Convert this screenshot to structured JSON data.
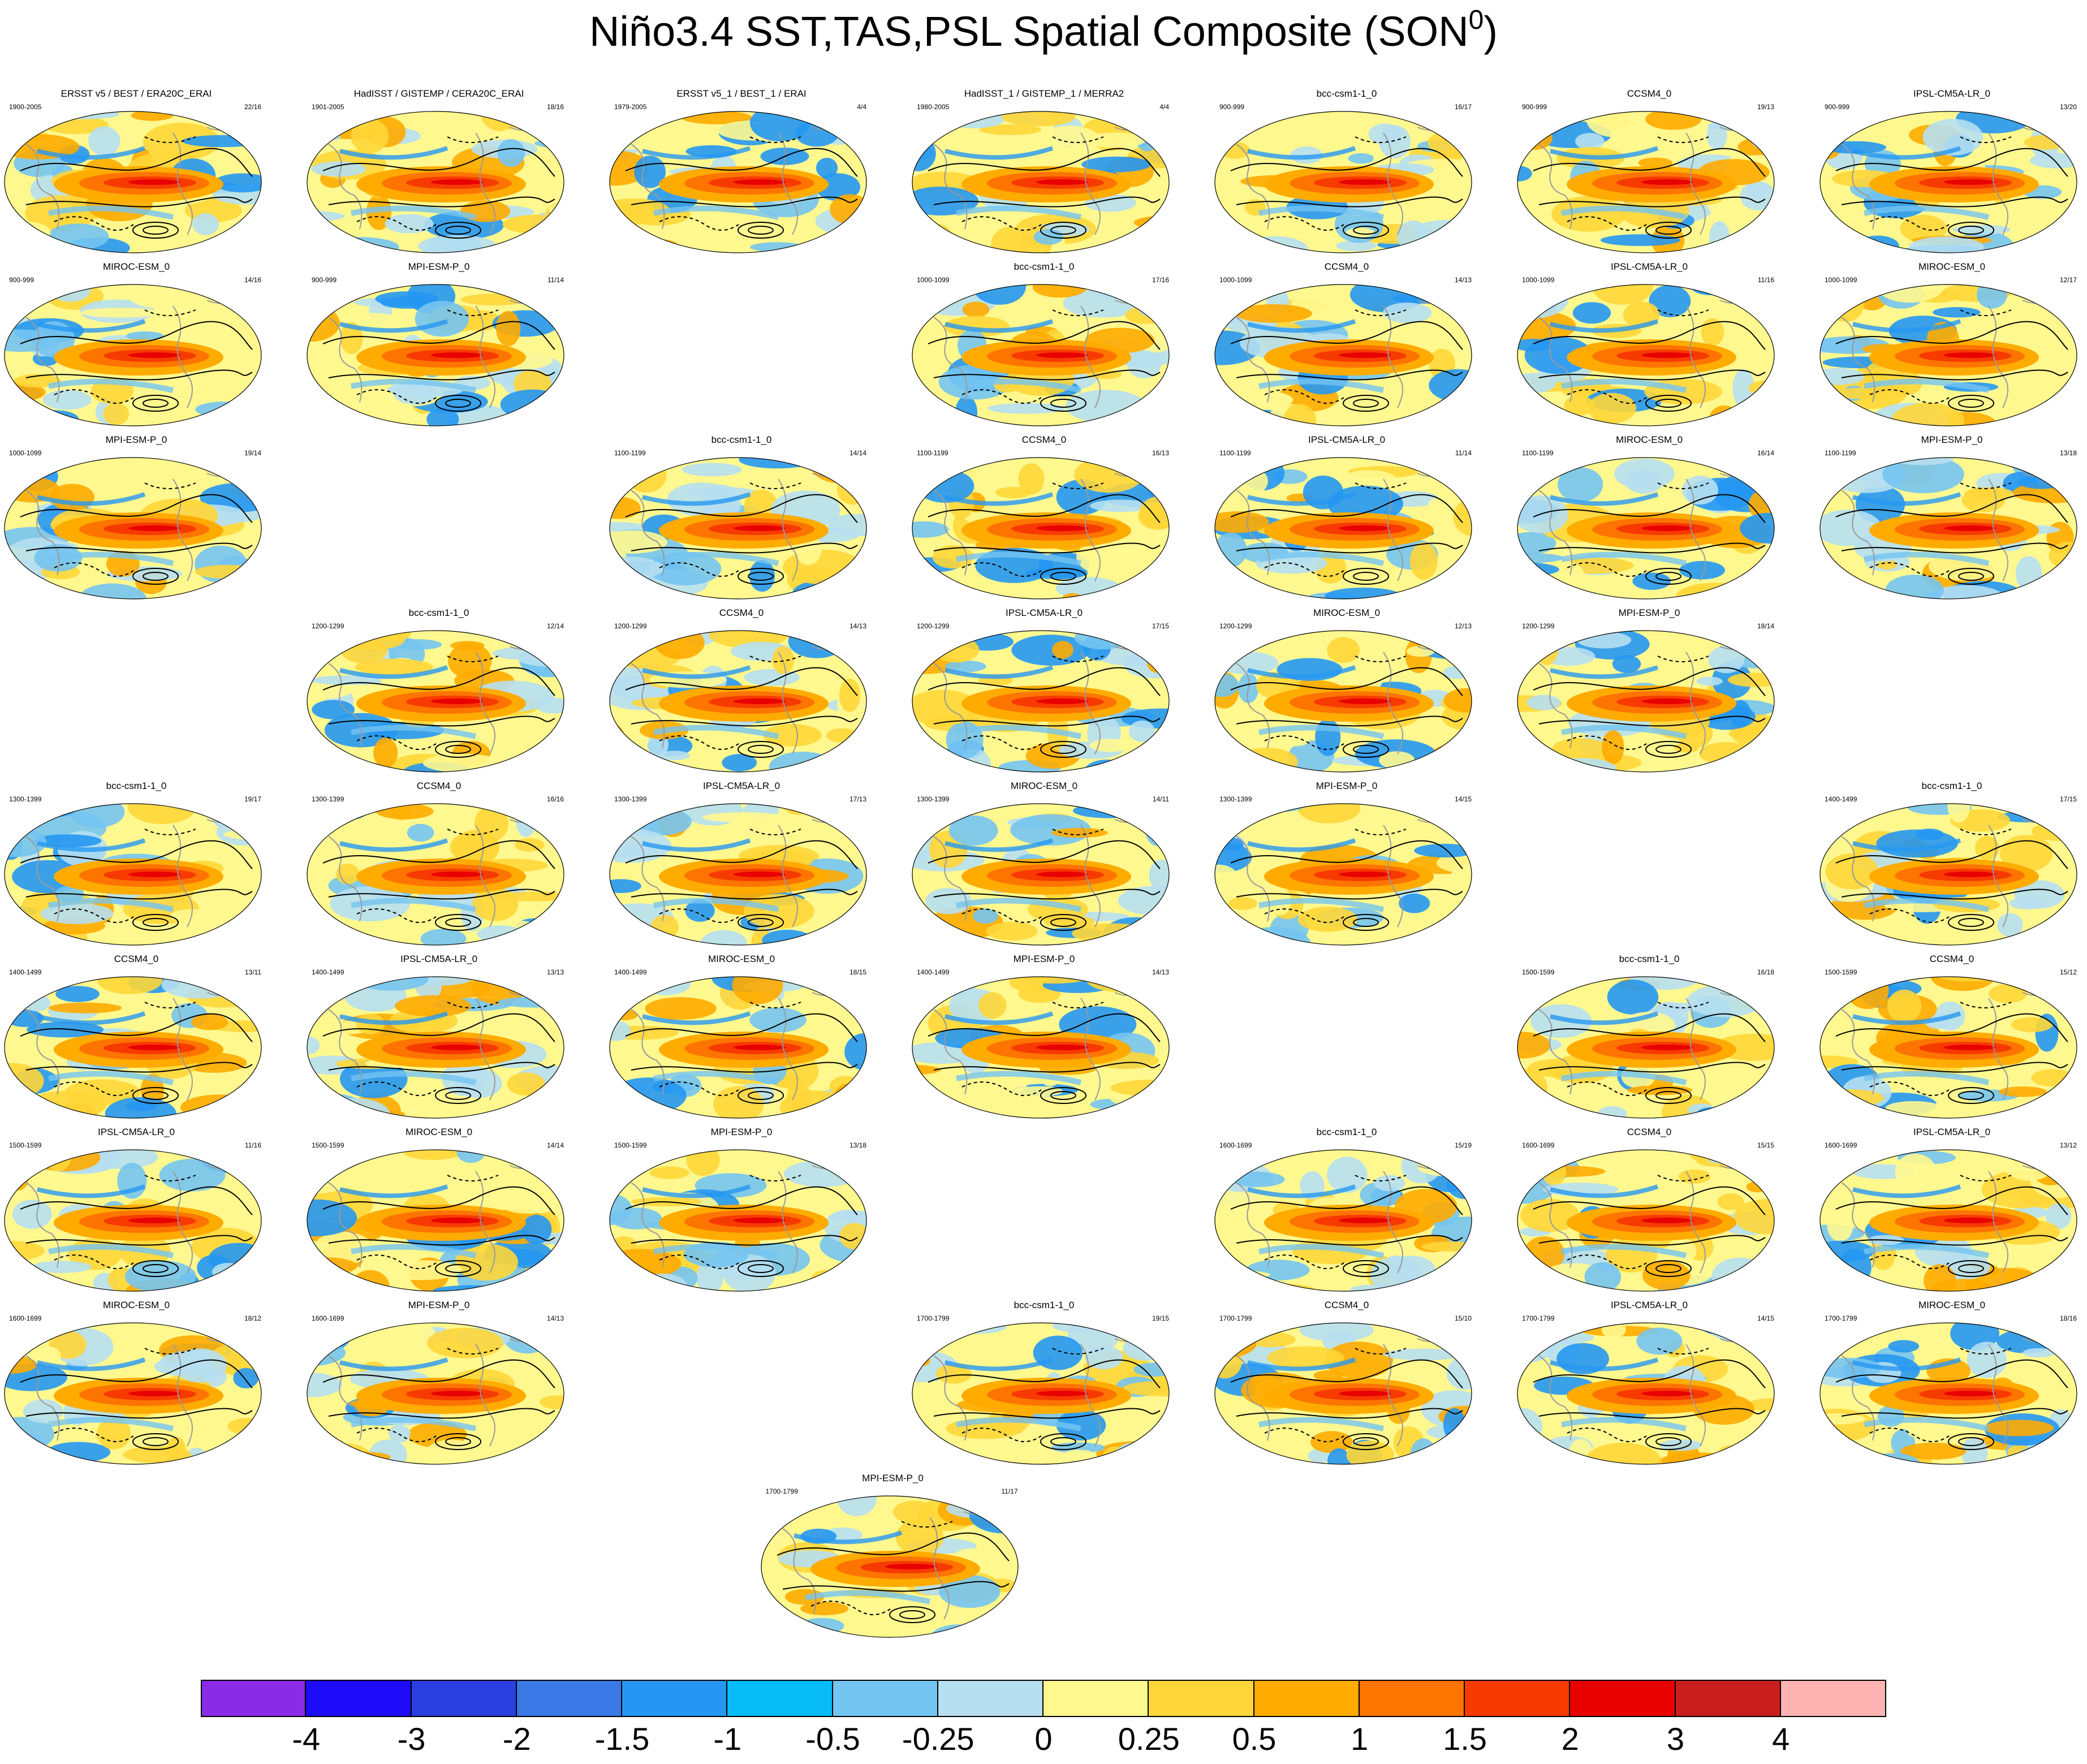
{
  "title": {
    "main": "Niño3.4 SST,TAS,PSL Spatial Composite (SON",
    "sup": "0",
    "end": ")"
  },
  "colorbar": {
    "colors": [
      "#8a2be8",
      "#1e0bf7",
      "#2a3fe0",
      "#3a78e6",
      "#2597f2",
      "#08bdf7",
      "#74c4f1",
      "#b6dff1",
      "#fff88f",
      "#ffd638",
      "#ffab00",
      "#fd7400",
      "#f73a00",
      "#e80000",
      "#c81e1e",
      "#ffb3b3"
    ],
    "ticks": [
      "-4",
      "-3",
      "-2",
      "-1.5",
      "-1",
      "-0.5",
      "-0.25",
      "0",
      "0.25",
      "0.5",
      "1",
      "1.5",
      "2",
      "3",
      "4"
    ]
  },
  "panels": [
    {
      "row": 0,
      "col": 0,
      "title": "ERSST v5 / BEST / ERA20C_ERAI",
      "years": "1900-2005",
      "count": "22/16"
    },
    {
      "row": 0,
      "col": 1,
      "title": "HadISST / GISTEMP / CERA20C_ERAI",
      "years": "1901-2005",
      "count": "18/16"
    },
    {
      "row": 0,
      "col": 2,
      "title": "ERSST v5_1 / BEST_1 / ERAI",
      "years": "1979-2005",
      "count": "4/4"
    },
    {
      "row": 0,
      "col": 3,
      "title": "HadISST_1 / GISTEMP_1 / MERRA2",
      "years": "1980-2005",
      "count": "4/4"
    },
    {
      "row": 0,
      "col": 4,
      "title": "bcc-csm1-1_0",
      "years": "900-999",
      "count": "16/17"
    },
    {
      "row": 0,
      "col": 5,
      "title": "CCSM4_0",
      "years": "900-999",
      "count": "19/13"
    },
    {
      "row": 0,
      "col": 6,
      "title": "IPSL-CM5A-LR_0",
      "years": "900-999",
      "count": "13/20"
    },
    {
      "row": 1,
      "col": 0,
      "title": "MIROC-ESM_0",
      "years": "900-999",
      "count": "14/16"
    },
    {
      "row": 1,
      "col": 1,
      "title": "MPI-ESM-P_0",
      "years": "900-999",
      "count": "11/14"
    },
    {
      "row": 1,
      "col": 3,
      "title": "bcc-csm1-1_0",
      "years": "1000-1099",
      "count": "17/16"
    },
    {
      "row": 1,
      "col": 4,
      "title": "CCSM4_0",
      "years": "1000-1099",
      "count": "14/13"
    },
    {
      "row": 1,
      "col": 5,
      "title": "IPSL-CM5A-LR_0",
      "years": "1000-1099",
      "count": "11/16"
    },
    {
      "row": 1,
      "col": 6,
      "title": "MIROC-ESM_0",
      "years": "1000-1099",
      "count": "12/17"
    },
    {
      "row": 2,
      "col": 0,
      "title": "MPI-ESM-P_0",
      "years": "1000-1099",
      "count": "19/14"
    },
    {
      "row": 2,
      "col": 2,
      "title": "bcc-csm1-1_0",
      "years": "1100-1199",
      "count": "14/14"
    },
    {
      "row": 2,
      "col": 3,
      "title": "CCSM4_0",
      "years": "1100-1199",
      "count": "16/13"
    },
    {
      "row": 2,
      "col": 4,
      "title": "IPSL-CM5A-LR_0",
      "years": "1100-1199",
      "count": "11/14"
    },
    {
      "row": 2,
      "col": 5,
      "title": "MIROC-ESM_0",
      "years": "1100-1199",
      "count": "16/14"
    },
    {
      "row": 2,
      "col": 6,
      "title": "MPI-ESM-P_0",
      "years": "1100-1199",
      "count": "13/18"
    },
    {
      "row": 3,
      "col": 1,
      "title": "bcc-csm1-1_0",
      "years": "1200-1299",
      "count": "12/14"
    },
    {
      "row": 3,
      "col": 2,
      "title": "CCSM4_0",
      "years": "1200-1299",
      "count": "14/13"
    },
    {
      "row": 3,
      "col": 3,
      "title": "IPSL-CM5A-LR_0",
      "years": "1200-1299",
      "count": "17/15"
    },
    {
      "row": 3,
      "col": 4,
      "title": "MIROC-ESM_0",
      "years": "1200-1299",
      "count": "12/13"
    },
    {
      "row": 3,
      "col": 5,
      "title": "MPI-ESM-P_0",
      "years": "1200-1299",
      "count": "18/14"
    },
    {
      "row": 4,
      "col": 0,
      "title": "bcc-csm1-1_0",
      "years": "1300-1399",
      "count": "19/17"
    },
    {
      "row": 4,
      "col": 1,
      "title": "CCSM4_0",
      "years": "1300-1399",
      "count": "16/16"
    },
    {
      "row": 4,
      "col": 2,
      "title": "IPSL-CM5A-LR_0",
      "years": "1300-1399",
      "count": "17/13"
    },
    {
      "row": 4,
      "col": 3,
      "title": "MIROC-ESM_0",
      "years": "1300-1399",
      "count": "14/11"
    },
    {
      "row": 4,
      "col": 4,
      "title": "MPI-ESM-P_0",
      "years": "1300-1399",
      "count": "14/15"
    },
    {
      "row": 4,
      "col": 6,
      "title": "bcc-csm1-1_0",
      "years": "1400-1499",
      "count": "17/15"
    },
    {
      "row": 5,
      "col": 0,
      "title": "CCSM4_0",
      "years": "1400-1499",
      "count": "13/11"
    },
    {
      "row": 5,
      "col": 1,
      "title": "IPSL-CM5A-LR_0",
      "years": "1400-1499",
      "count": "13/13"
    },
    {
      "row": 5,
      "col": 2,
      "title": "MIROC-ESM_0",
      "years": "1400-1499",
      "count": "18/15"
    },
    {
      "row": 5,
      "col": 3,
      "title": "MPI-ESM-P_0",
      "years": "1400-1499",
      "count": "14/13"
    },
    {
      "row": 5,
      "col": 5,
      "title": "bcc-csm1-1_0",
      "years": "1500-1599",
      "count": "16/18"
    },
    {
      "row": 5,
      "col": 6,
      "title": "CCSM4_0",
      "years": "1500-1599",
      "count": "15/12"
    },
    {
      "row": 6,
      "col": 0,
      "title": "IPSL-CM5A-LR_0",
      "years": "1500-1599",
      "count": "11/16"
    },
    {
      "row": 6,
      "col": 1,
      "title": "MIROC-ESM_0",
      "years": "1500-1599",
      "count": "14/14"
    },
    {
      "row": 6,
      "col": 2,
      "title": "MPI-ESM-P_0",
      "years": "1500-1599",
      "count": "13/18"
    },
    {
      "row": 6,
      "col": 4,
      "title": "bcc-csm1-1_0",
      "years": "1600-1699",
      "count": "15/19"
    },
    {
      "row": 6,
      "col": 5,
      "title": "CCSM4_0",
      "years": "1600-1699",
      "count": "15/15"
    },
    {
      "row": 6,
      "col": 6,
      "title": "IPSL-CM5A-LR_0",
      "years": "1600-1699",
      "count": "13/12"
    },
    {
      "row": 7,
      "col": 0,
      "title": "MIROC-ESM_0",
      "years": "1600-1699",
      "count": "18/12"
    },
    {
      "row": 7,
      "col": 1,
      "title": "MPI-ESM-P_0",
      "years": "1600-1699",
      "count": "14/13"
    },
    {
      "row": 7,
      "col": 3,
      "title": "bcc-csm1-1_0",
      "years": "1700-1799",
      "count": "19/15"
    },
    {
      "row": 7,
      "col": 4,
      "title": "CCSM4_0",
      "years": "1700-1799",
      "count": "15/10"
    },
    {
      "row": 7,
      "col": 5,
      "title": "IPSL-CM5A-LR_0",
      "years": "1700-1799",
      "count": "14/15"
    },
    {
      "row": 7,
      "col": 6,
      "title": "MIROC-ESM_0",
      "years": "1700-1799",
      "count": "18/16"
    },
    {
      "row": 8,
      "col": 2.5,
      "title": "MPI-ESM-P_0",
      "years": "1700-1799",
      "count": "11/17"
    }
  ]
}
